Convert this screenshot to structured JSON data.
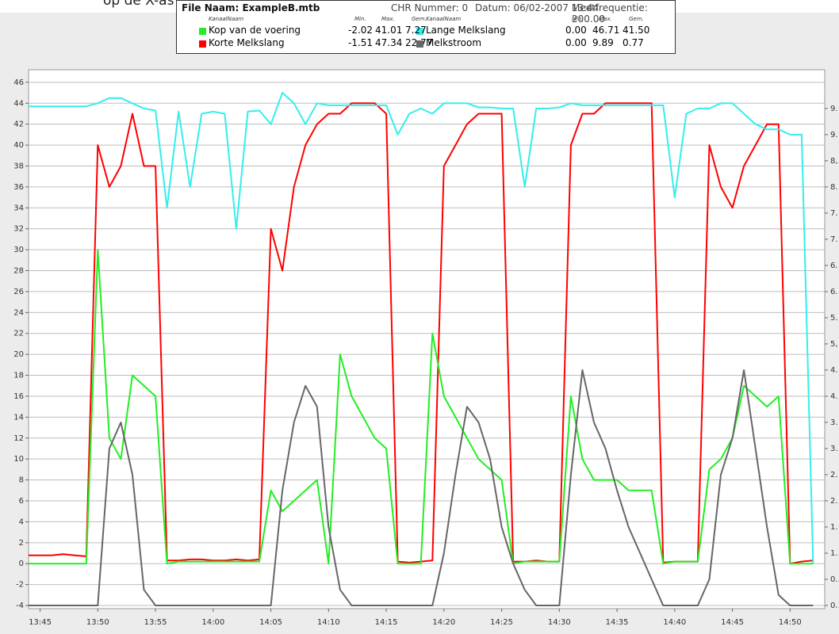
{
  "caption": "op de X-as is de tijd in uren en minuten weergegeven.",
  "chart_data": {
    "type": "line",
    "info": [
      "File Naam: ExampleB.mtb",
      "CHR Nummer: 0",
      "Datum: 06/02-2007  13:44",
      "Meetfrequentie: 200.00"
    ],
    "stats_header": [
      "KanaalNaam",
      "Min.",
      "Max.",
      "Gem."
    ],
    "x": [
      "13:44",
      "13:45",
      "13:46",
      "13:47",
      "13:48",
      "13:49",
      "13:50",
      "13:51",
      "13:52",
      "13:53",
      "13:54",
      "13:55",
      "13:56",
      "13:57",
      "13:58",
      "13:59",
      "14:00",
      "14:01",
      "14:02",
      "14:03",
      "14:04",
      "14:05",
      "14:06",
      "14:07",
      "14:08",
      "14:09",
      "14:10",
      "14:11",
      "14:12",
      "14:13",
      "14:14",
      "14:15",
      "14:16",
      "14:17",
      "14:18",
      "14:19",
      "14:20",
      "14:21",
      "14:22",
      "14:23",
      "14:24",
      "14:25",
      "14:26",
      "14:27",
      "14:28",
      "14:29",
      "14:30",
      "14:31",
      "14:32",
      "14:33",
      "14:34",
      "14:35",
      "14:36",
      "14:37",
      "14:38",
      "14:39",
      "14:40",
      "14:41",
      "14:42",
      "14:43",
      "14:44",
      "14:45",
      "14:46",
      "14:47",
      "14:48",
      "14:49",
      "14:50",
      "14:51",
      "14:52"
    ],
    "series": [
      {
        "name": "Korte Melkslang",
        "color": "#ff0000",
        "stats": [
          "-1.51",
          "47.34",
          "22.77"
        ],
        "values": [
          0.8,
          0.8,
          0.8,
          0.9,
          0.8,
          0.7,
          40,
          36,
          38,
          43,
          38,
          38,
          0.3,
          0.3,
          0.4,
          0.4,
          0.3,
          0.3,
          0.4,
          0.3,
          0.4,
          32,
          28,
          36,
          40,
          42,
          43,
          43,
          44,
          44,
          44,
          43,
          0.2,
          0.1,
          0.2,
          0.3,
          38,
          40,
          42,
          43,
          43,
          43,
          0.2,
          0.2,
          0.3,
          0.2,
          0.2,
          40,
          43,
          43,
          44,
          44,
          44,
          44,
          44,
          0.1,
          0.2,
          0.2,
          0.2,
          40,
          36,
          34,
          38,
          40,
          42,
          42,
          0,
          0.2,
          0.3
        ]
      },
      {
        "name": "Lange Melkslang",
        "color": "#33eeee",
        "stats": [
          "0.00",
          "46.71",
          "41.50"
        ],
        "values": [
          43.7,
          43.7,
          43.7,
          43.7,
          43.7,
          43.7,
          44,
          44.5,
          44.5,
          44,
          43.5,
          43.3,
          34,
          43.2,
          36,
          43,
          43.2,
          43,
          32,
          43.2,
          43.3,
          42,
          45,
          44,
          42,
          44,
          43.8,
          43.8,
          43.8,
          43.8,
          43.8,
          43.8,
          41,
          43,
          43.5,
          43,
          44,
          44,
          44,
          43.6,
          43.6,
          43.5,
          43.5,
          36,
          43.5,
          43.5,
          43.6,
          44,
          43.8,
          43.8,
          43.8,
          43.8,
          43.8,
          43.8,
          43.8,
          43.8,
          35,
          43,
          43.5,
          43.5,
          44,
          44,
          43,
          42,
          41.5,
          41.5,
          41,
          41,
          0
        ]
      },
      {
        "name": "Kop van de voering",
        "color": "#22ee22",
        "stats": [
          "-2.02",
          "41.01",
          "7.27"
        ],
        "values": [
          0,
          0,
          0,
          0,
          0,
          0,
          30,
          12,
          10,
          18,
          17,
          16,
          0,
          0.2,
          0.2,
          0.2,
          0.2,
          0.2,
          0.2,
          0.2,
          0.2,
          7,
          5,
          6,
          7,
          8,
          0,
          20,
          16,
          14,
          12,
          11,
          0,
          0,
          0,
          22,
          16,
          14,
          12,
          10,
          9,
          8,
          0,
          0.2,
          0.2,
          0.2,
          0.2,
          16,
          10,
          8,
          8,
          8,
          7,
          7,
          7,
          0,
          0.2,
          0.2,
          0.2,
          9,
          10,
          12,
          17,
          16,
          15,
          16,
          0,
          0,
          0
        ]
      },
      {
        "name": "Melkstroom",
        "color": "#666666",
        "axis": "y2",
        "stats": [
          "0.00",
          "9.89",
          "0.77"
        ],
        "values": [
          0,
          0,
          0,
          0,
          0,
          0,
          0,
          3.0,
          3.5,
          2.5,
          0.3,
          0,
          0,
          0,
          0,
          0,
          0,
          0,
          0,
          0,
          0,
          0,
          2.2,
          3.5,
          4.2,
          3.8,
          1.5,
          0.3,
          0,
          0,
          0,
          0,
          0,
          0,
          0,
          0,
          1.0,
          2.5,
          3.8,
          3.5,
          2.8,
          1.5,
          0.8,
          0.3,
          0,
          0,
          0,
          2.5,
          4.5,
          3.5,
          3.0,
          2.2,
          1.5,
          1.0,
          0.5,
          0,
          0,
          0,
          0,
          0.5,
          2.5,
          3.2,
          4.5,
          3.0,
          1.5,
          0.2,
          0,
          0,
          0
        ]
      }
    ],
    "xlim": [
      "13:44",
      "14:53"
    ],
    "xticks": [
      "13:45",
      "13:50",
      "13:55",
      "14:00",
      "14:05",
      "14:10",
      "14:15",
      "14:20",
      "14:25",
      "14:30",
      "14:35",
      "14:40",
      "14:45",
      "14:50"
    ],
    "ylim": [
      -4.3,
      47.2
    ],
    "yticks": [
      -4,
      -2,
      0,
      2,
      4,
      6,
      8,
      10,
      12,
      14,
      16,
      18,
      20,
      22,
      24,
      26,
      28,
      30,
      32,
      34,
      36,
      38,
      40,
      42,
      44,
      46
    ],
    "y2lim": [
      -0.06,
      10.24
    ],
    "y2ticks": [
      {
        "value": 0,
        "label": "0."
      },
      {
        "value": 0.5,
        "label": "0."
      },
      {
        "value": 1,
        "label": "1."
      },
      {
        "value": 1.5,
        "label": "1."
      },
      {
        "value": 2,
        "label": "2."
      },
      {
        "value": 2.5,
        "label": "2."
      },
      {
        "value": 3,
        "label": "3."
      },
      {
        "value": 3.5,
        "label": "3."
      },
      {
        "value": 4,
        "label": "4."
      },
      {
        "value": 4.5,
        "label": "4."
      },
      {
        "value": 5,
        "label": "5,"
      },
      {
        "value": 5.5,
        "label": "5."
      },
      {
        "value": 6,
        "label": "6."
      },
      {
        "value": 6.5,
        "label": "6."
      },
      {
        "value": 7,
        "label": "7."
      },
      {
        "value": 7.5,
        "label": "7."
      },
      {
        "value": 8,
        "label": "8."
      },
      {
        "value": 8.5,
        "label": "8,"
      },
      {
        "value": 9,
        "label": "9."
      },
      {
        "value": 9.5,
        "label": "9."
      }
    ],
    "grid": true
  }
}
